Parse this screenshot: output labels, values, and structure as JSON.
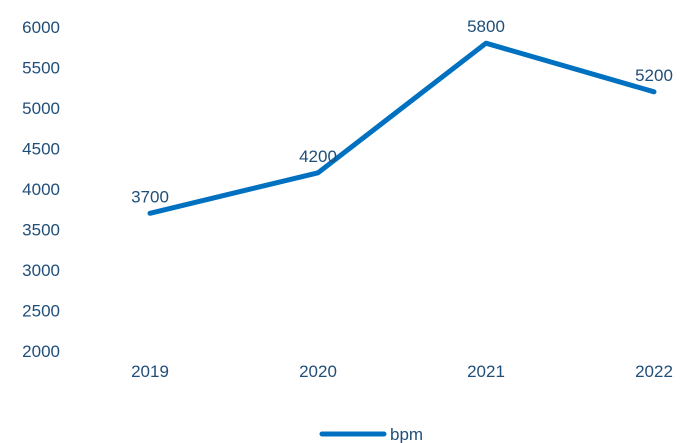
{
  "chart_data": {
    "type": "line",
    "categories": [
      "2019",
      "2020",
      "2021",
      "2022"
    ],
    "series": [
      {
        "name": "bpm",
        "values": [
          3700,
          4200,
          5800,
          5200
        ]
      }
    ],
    "data_labels": [
      "3700",
      "4200",
      "5800",
      "5200"
    ],
    "yticks": [
      "2000",
      "2500",
      "3000",
      "3500",
      "4000",
      "4500",
      "5000",
      "5500",
      "6000"
    ],
    "ylim": [
      2000,
      6000
    ],
    "title": "",
    "xlabel": "",
    "ylabel": "",
    "grid": false,
    "legend_position": "bottom",
    "colors": {
      "series": "#0070C0",
      "text": "#1F4E79"
    }
  }
}
